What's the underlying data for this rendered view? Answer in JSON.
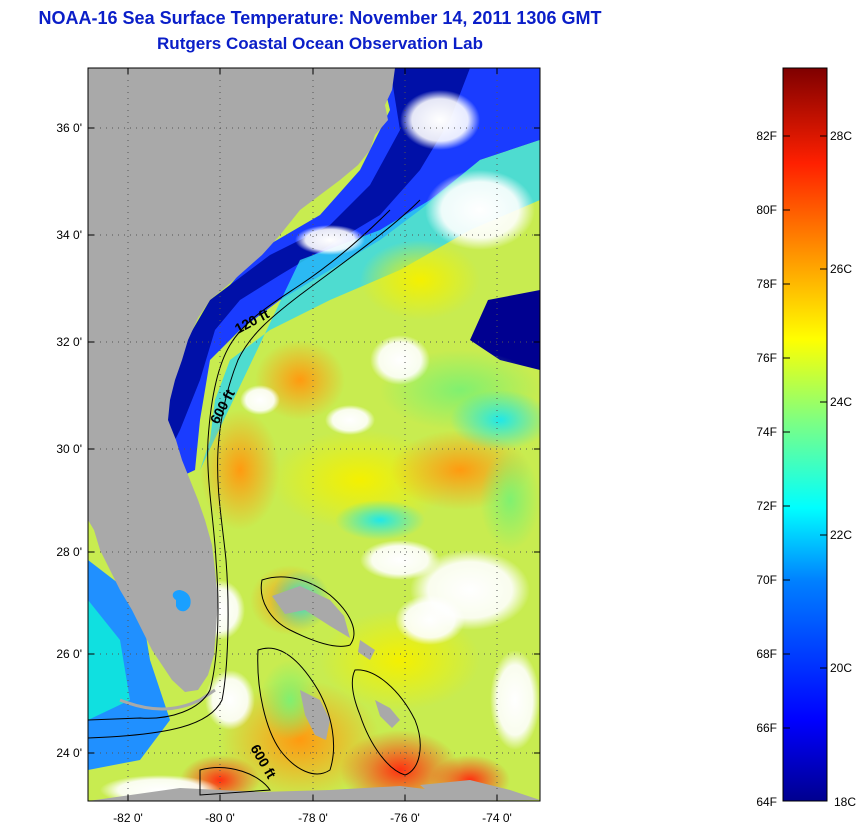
{
  "title": {
    "line1": "NOAA-16 Sea Surface Temperature:  November 14, 2011 1306 GMT",
    "line2": "Rutgers Coastal Ocean Observation Lab"
  },
  "axes": {
    "lat_ticks": [
      "36 0'",
      "34 0'",
      "32 0'",
      "30 0'",
      "28 0'",
      "26 0'",
      "24 0'"
    ],
    "lon_ticks": [
      "-82 0'",
      "-80 0'",
      "-78 0'",
      "-76 0'",
      "-74 0'"
    ],
    "lat_range": [
      23,
      37.1
    ],
    "lon_range": [
      -83,
      -73.2
    ]
  },
  "contour_labels": [
    "120 ft",
    "600 ft",
    "600 ft"
  ],
  "colorbar": {
    "fahrenheit": [
      "82F",
      "80F",
      "78F",
      "76F",
      "74F",
      "72F",
      "70F",
      "68F",
      "66F",
      "64F"
    ],
    "celsius": [
      "28C",
      "26C",
      "24C",
      "22C",
      "20C",
      "18C"
    ],
    "range_c": [
      18,
      30
    ],
    "colormap": [
      "#00008f",
      "#0000ff",
      "#007fff",
      "#00ffff",
      "#7fff7f",
      "#ffff00",
      "#ff7f00",
      "#ff0000",
      "#7f0000"
    ]
  },
  "colors": {
    "land": "#a9a9a9",
    "title": "#0a1ec8"
  }
}
